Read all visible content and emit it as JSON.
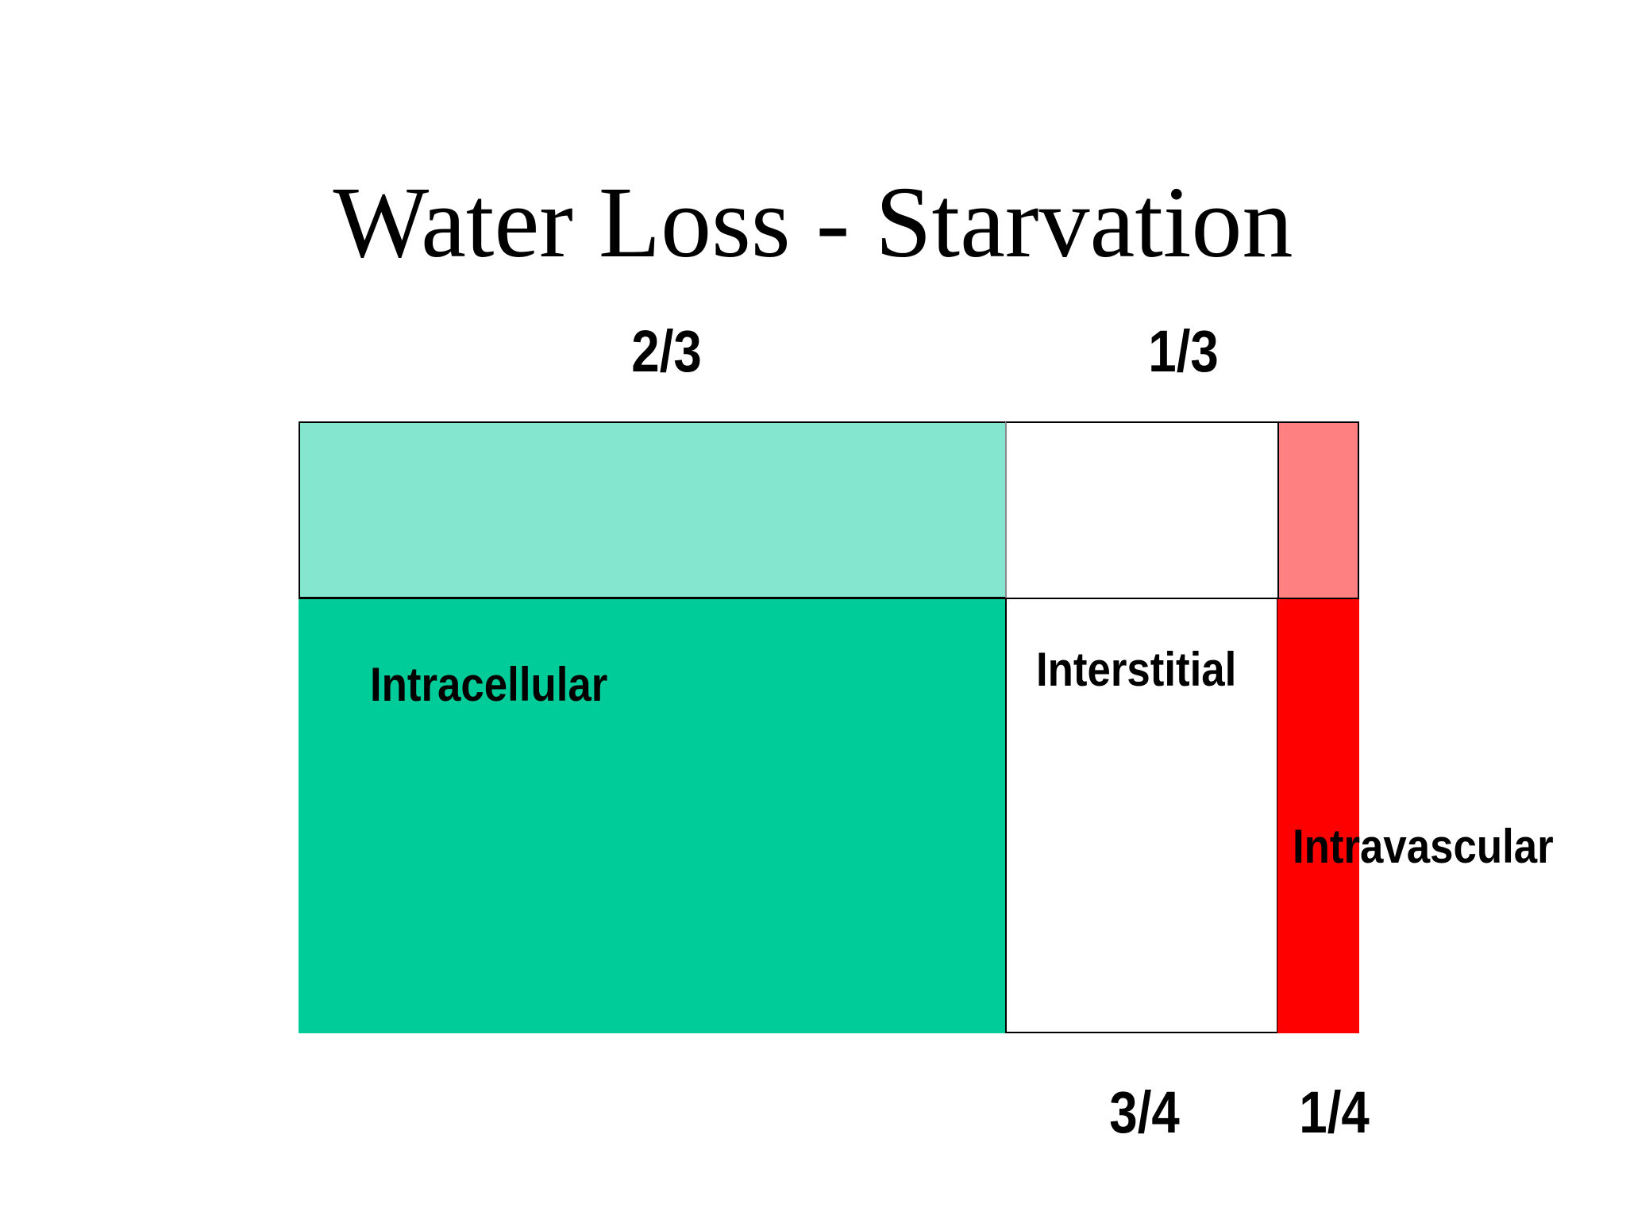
{
  "slide": {
    "title": "Water Loss - Starvation"
  },
  "fractions": {
    "top_left": "2/3",
    "top_right": "1/3",
    "bottom_left": "3/4",
    "bottom_right": "1/4"
  },
  "compartments": {
    "intracellular": {
      "label": "Intracellular",
      "color": "#00CC9A",
      "lost_color": "#84E6CE"
    },
    "interstitial": {
      "label": "Interstitial",
      "color": "#FFFFFF"
    },
    "intravascular": {
      "label": "Intravascular",
      "color": "#FF0000",
      "lost_color": "#FF8080"
    }
  }
}
